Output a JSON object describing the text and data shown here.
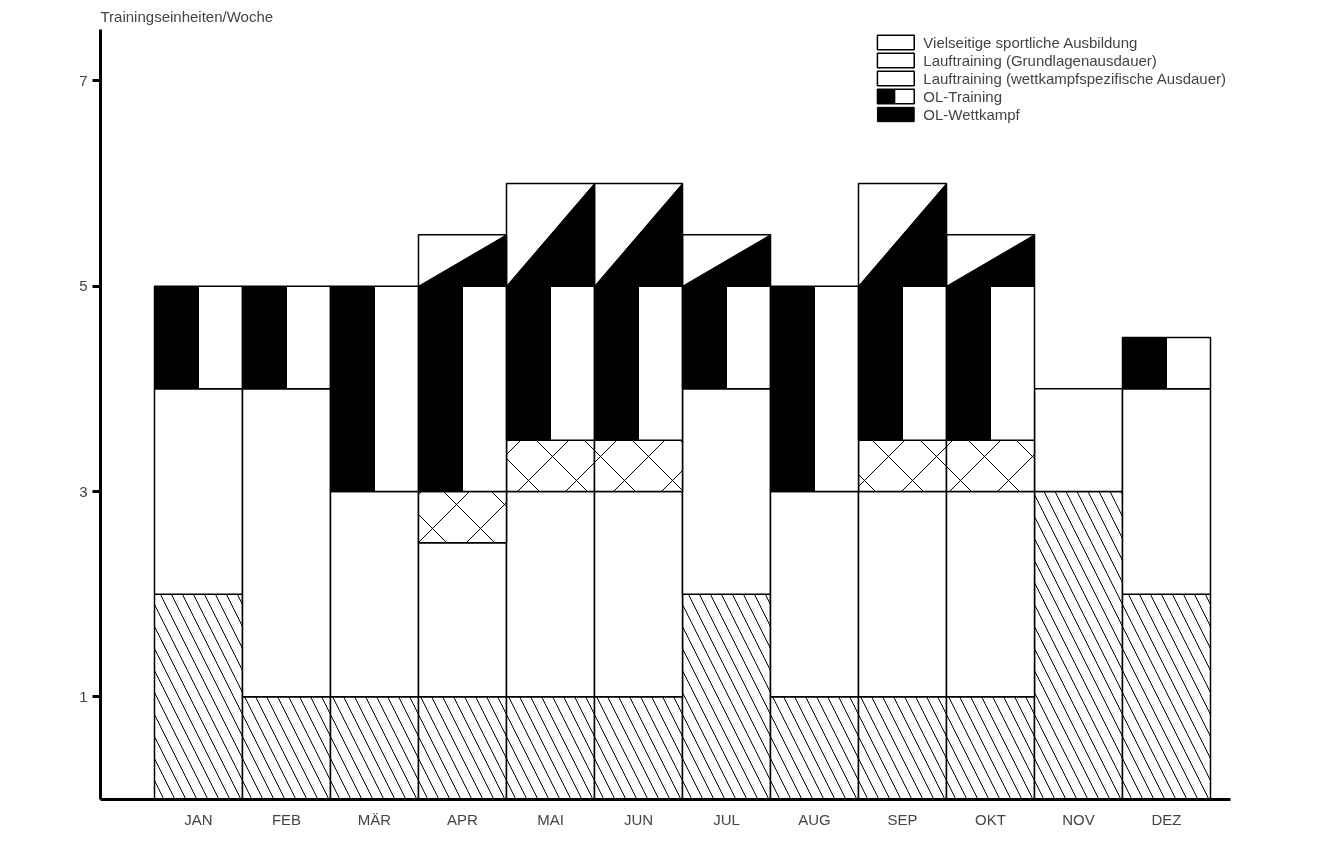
{
  "chart_data": {
    "type": "bar",
    "stacked": true,
    "ylabel": "Trainingseinheiten/Woche",
    "categories": [
      "JAN",
      "FEB",
      "MÄR",
      "APR",
      "MAI",
      "JUN",
      "JUL",
      "AUG",
      "SEP",
      "OKT",
      "NOV",
      "DEZ"
    ],
    "ylim": [
      0,
      7.5
    ],
    "yticks": [
      1,
      3,
      5,
      7
    ],
    "grid": false,
    "legend": "top right",
    "series": [
      {
        "name": "Vielseitige sportliche Ausbildung",
        "color": "#ffffff",
        "values": [
          2,
          1,
          1,
          1,
          1,
          1,
          2,
          1,
          1,
          1,
          3,
          2
        ]
      },
      {
        "name": "Lauftraining (Grundlagenausdauer)",
        "color": "#ffffff",
        "values": [
          2,
          3,
          2,
          1.5,
          2,
          2,
          2,
          2,
          2,
          2,
          1,
          2
        ]
      },
      {
        "name": "Lauftraining (wettkampfspezifische Ausdauer)",
        "color": "#ffffff",
        "values": [
          0,
          0,
          0,
          0.5,
          0.5,
          0.5,
          0,
          0,
          0.5,
          0.5,
          0,
          0
        ]
      },
      {
        "name": "OL-Training",
        "color": "#000000",
        "values": [
          1,
          1,
          2,
          2,
          1.5,
          1.5,
          1,
          2,
          1.5,
          1.5,
          0,
          0.5
        ]
      },
      {
        "name": "OL-Wettkampf",
        "color": "#000000",
        "values": [
          0,
          0,
          0,
          0.5,
          1,
          1,
          0.5,
          0,
          1,
          0.5,
          0,
          0
        ]
      }
    ]
  }
}
